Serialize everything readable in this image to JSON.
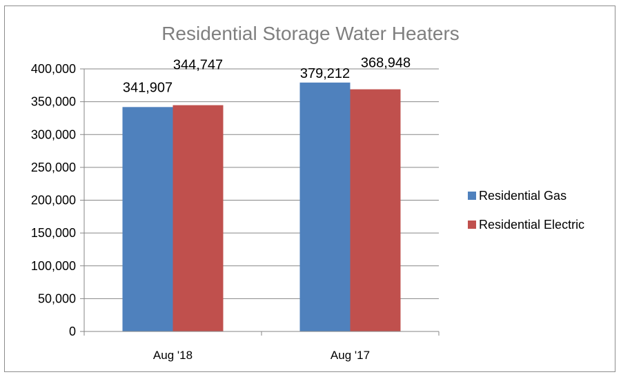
{
  "chart_data": {
    "type": "bar",
    "title": "Residential Storage Water Heaters",
    "xlabel": "",
    "ylabel": "",
    "categories": [
      "Aug '18",
      "Aug '17"
    ],
    "series": [
      {
        "name": "Residential Gas",
        "values": [
          341907,
          379212
        ],
        "value_labels": [
          "341,907",
          "379,212"
        ],
        "color": "#4f81bd"
      },
      {
        "name": "Residential Electric",
        "values": [
          344747,
          368948
        ],
        "value_labels": [
          "344,747",
          "368,948"
        ],
        "color": "#c0504d"
      }
    ],
    "ylim": [
      0,
      400000
    ],
    "yticks": [
      0,
      50000,
      100000,
      150000,
      200000,
      250000,
      300000,
      350000,
      400000
    ],
    "ytick_labels": [
      "0",
      "50,000",
      "100,000",
      "150,000",
      "200,000",
      "250,000",
      "300,000",
      "350,000",
      "400,000"
    ],
    "grid": true,
    "legend_position": "right"
  }
}
